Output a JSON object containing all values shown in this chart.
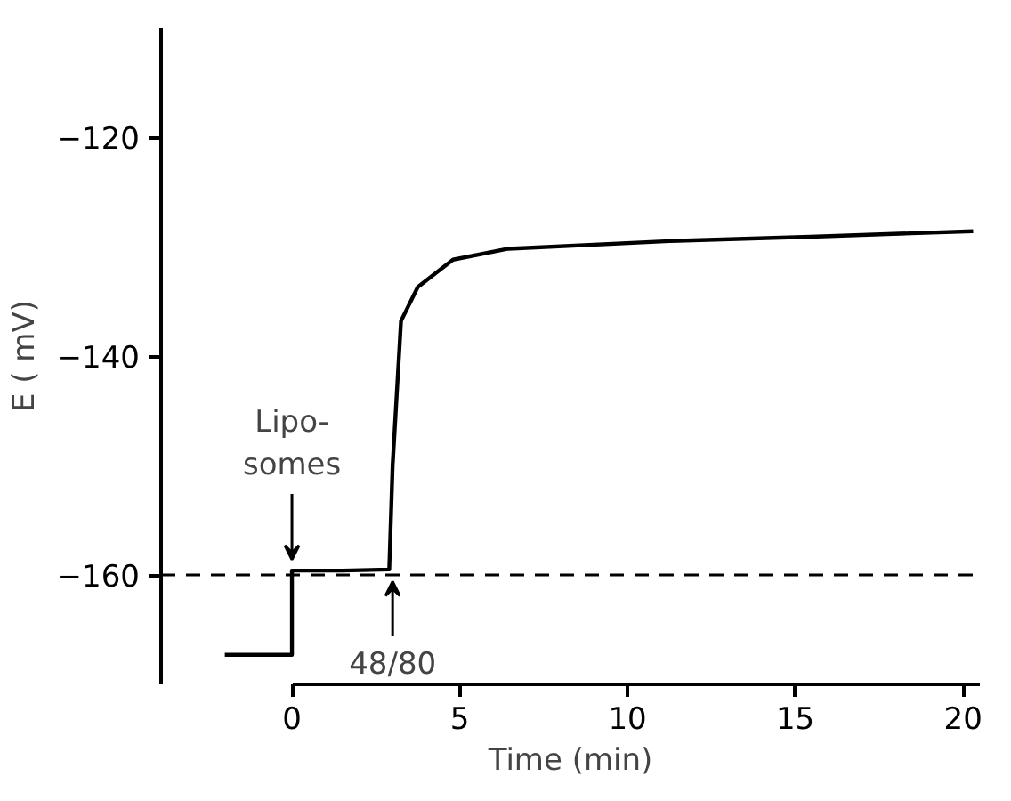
{
  "chart_data": {
    "type": "line",
    "xlabel": "Time (min)",
    "ylabel": "E ( mV)",
    "x": [
      -2.0,
      0,
      0,
      1.5,
      2.9,
      3.0,
      3.25,
      3.75,
      4.8,
      6.45,
      11.25,
      15.45,
      20.3
    ],
    "series": [
      {
        "color": "#000000",
        "values": [
          -167.3,
          -167.3,
          -159.6,
          -159.6,
          -159.5,
          -150,
          -136.8,
          -133.7,
          -131.2,
          -130.2,
          -129.5,
          -129.1,
          -128.6
        ]
      }
    ],
    "xlim": [
      -3.9,
      20.5
    ],
    "ylim": [
      -170,
      -110
    ],
    "xticks": [
      0,
      5,
      10,
      15,
      20
    ],
    "yticks": [
      -160,
      -140,
      -120
    ],
    "ref_lines": [
      {
        "axis": "y",
        "value": -160,
        "line_style": "dashed",
        "color": "#000000"
      }
    ],
    "annotations": [
      {
        "text": "Lipo-\nsomes",
        "x": 0,
        "y": -159.6
      },
      {
        "text": "48/80",
        "x": 3.0,
        "y": -159.6
      }
    ],
    "grid": false,
    "line_style": "solid",
    "marker": "none"
  }
}
